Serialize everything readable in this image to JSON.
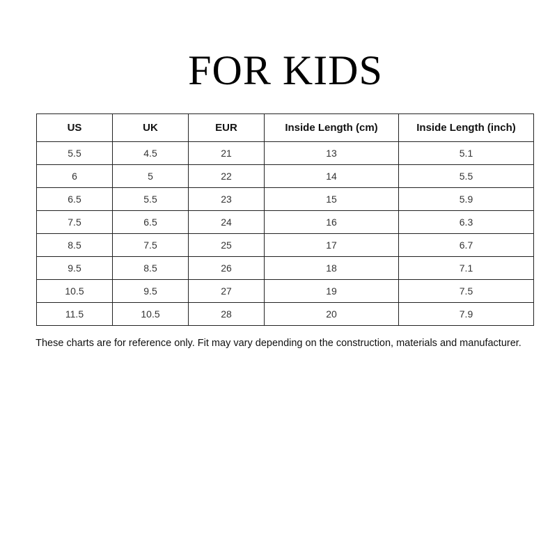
{
  "title": "FOR KIDS",
  "table": {
    "headers": [
      "US",
      "UK",
      "EUR",
      "Inside Length (cm)",
      "Inside Length (inch)"
    ],
    "rows": [
      [
        "5.5",
        "4.5",
        "21",
        "13",
        "5.1"
      ],
      [
        "6",
        "5",
        "22",
        "14",
        "5.5"
      ],
      [
        "6.5",
        "5.5",
        "23",
        "15",
        "5.9"
      ],
      [
        "7.5",
        "6.5",
        "24",
        "16",
        "6.3"
      ],
      [
        "8.5",
        "7.5",
        "25",
        "17",
        "6.7"
      ],
      [
        "9.5",
        "8.5",
        "26",
        "18",
        "7.1"
      ],
      [
        "10.5",
        "9.5",
        "27",
        "19",
        "7.5"
      ],
      [
        "11.5",
        "10.5",
        "28",
        "20",
        "7.9"
      ]
    ]
  },
  "note": "These charts are for reference only. Fit may vary depending on the construction, materials and manufacturer."
}
